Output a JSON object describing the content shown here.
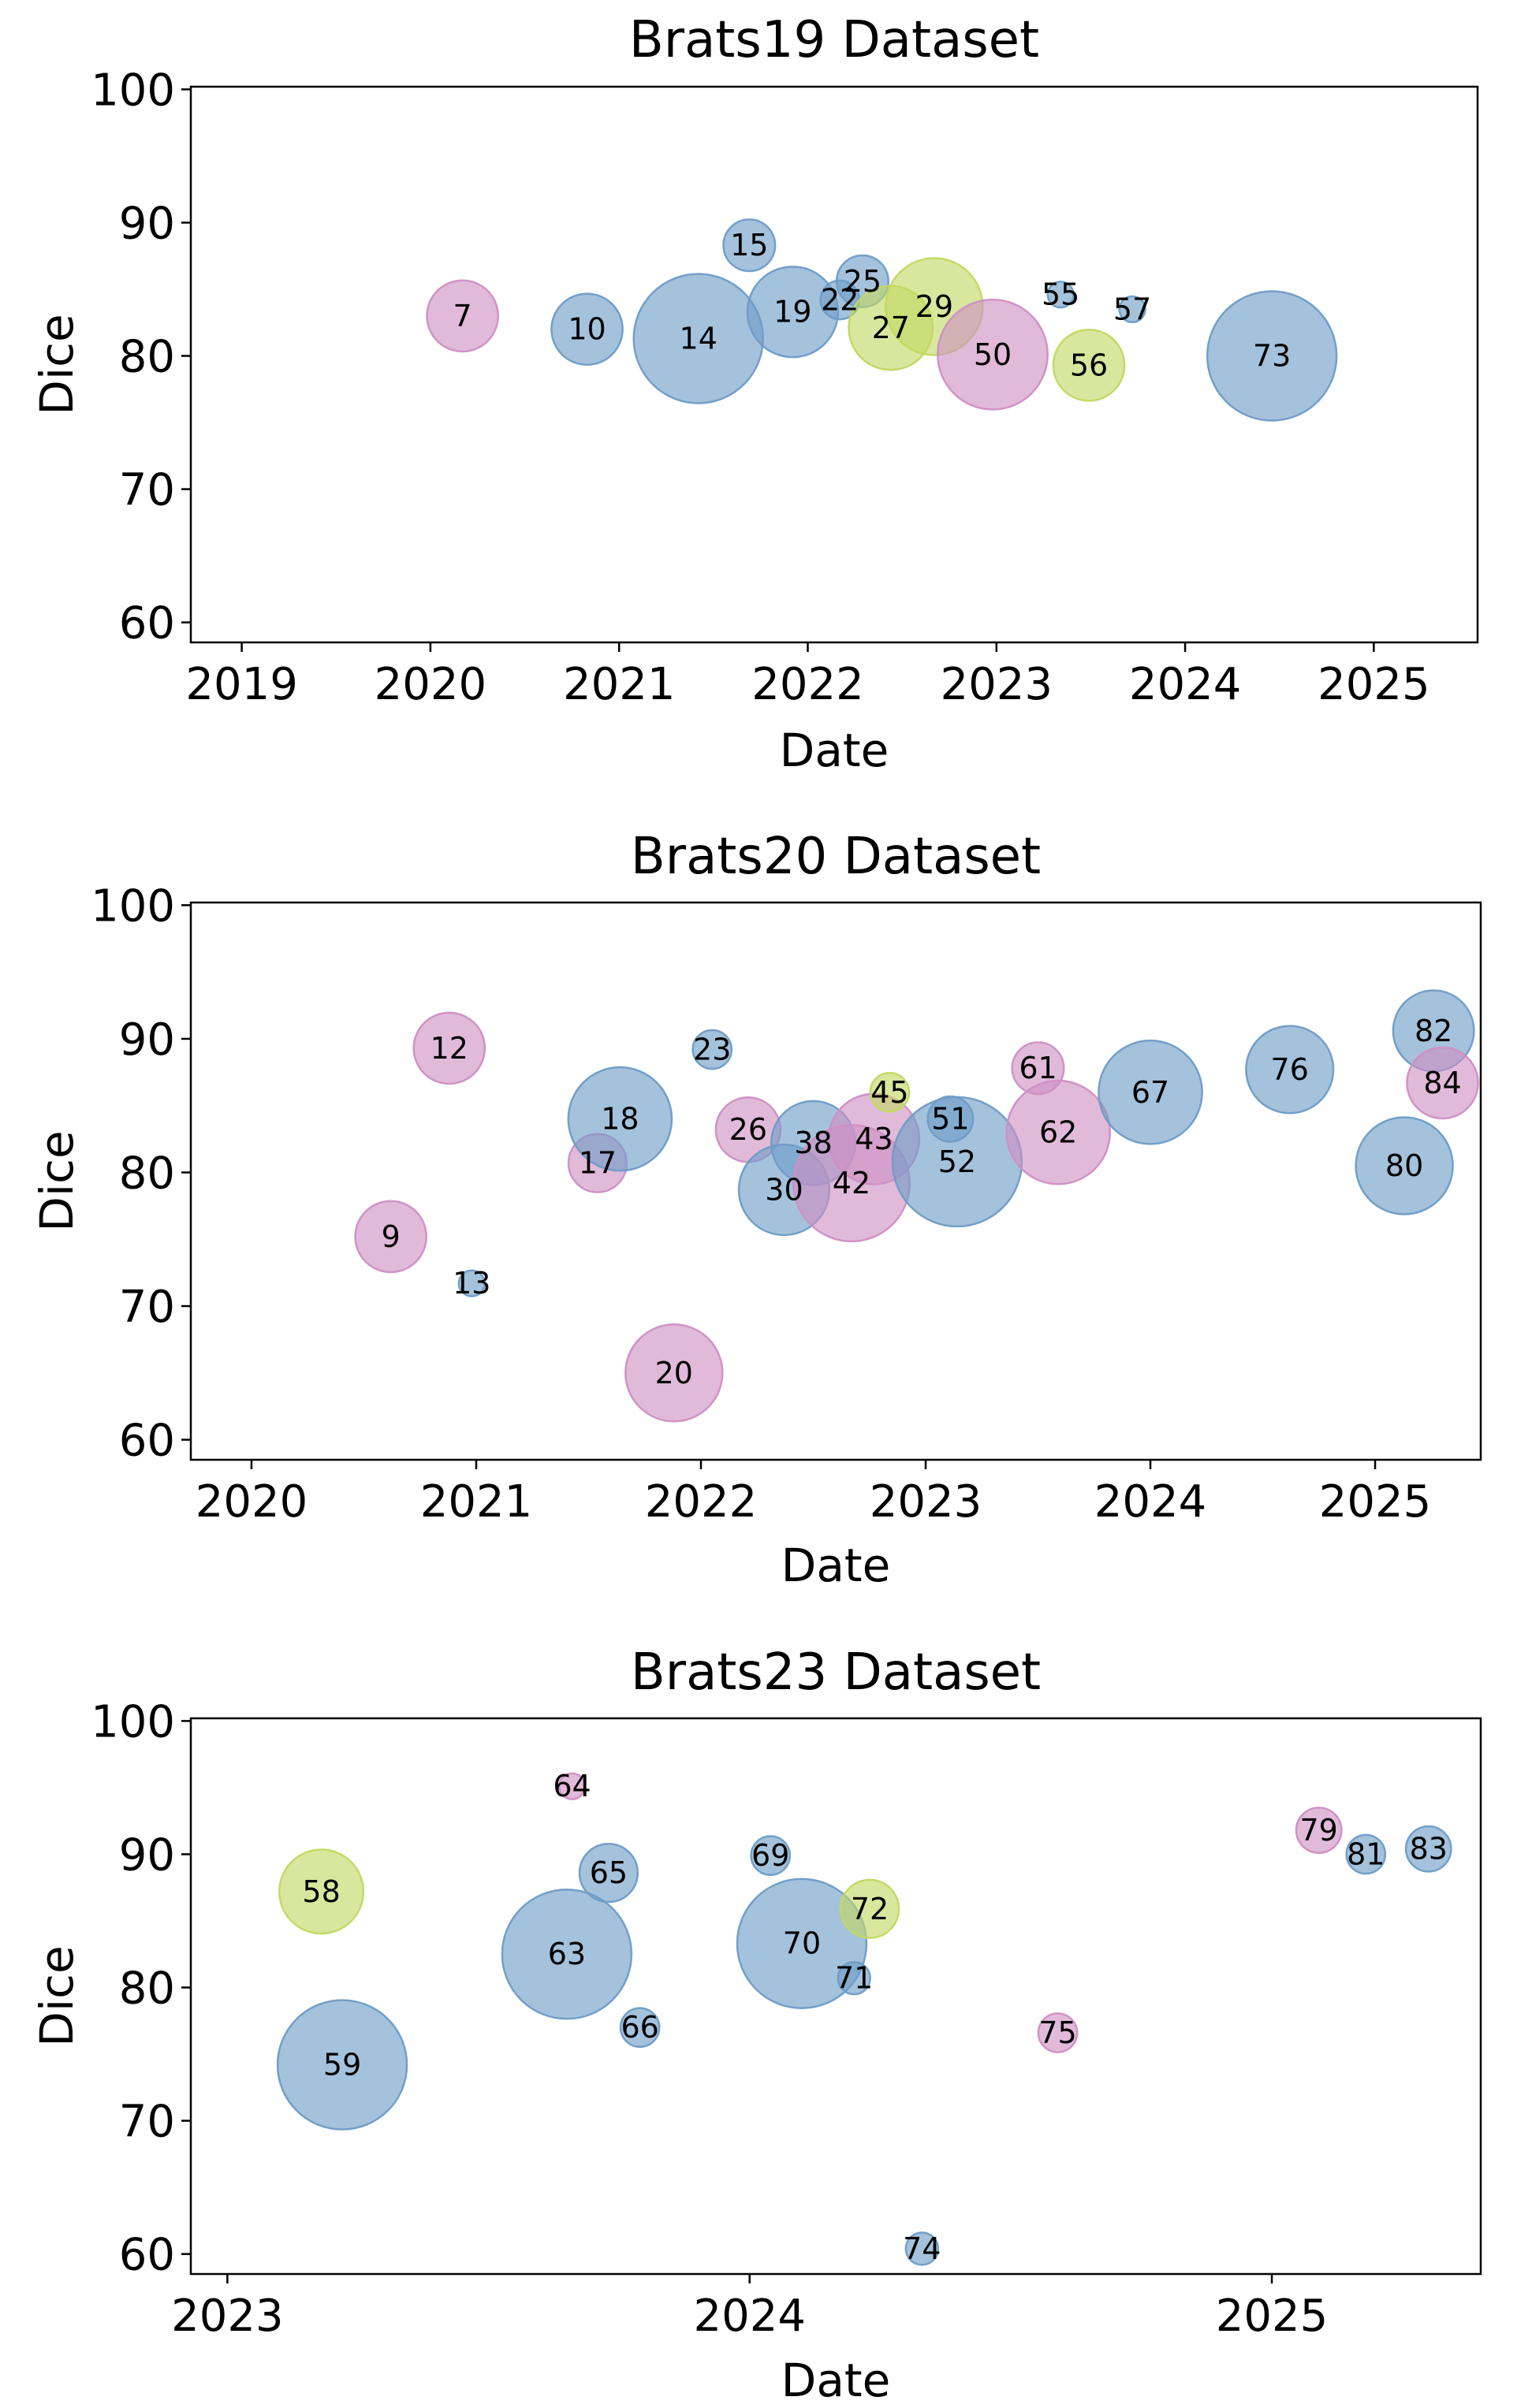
{
  "colors": {
    "blue": "#6e9cc6",
    "pink": "#cf8fc4",
    "green": "#c2d862"
  },
  "chart_data": [
    {
      "type": "scatter",
      "title": "Brats19 Dataset",
      "xlabel": "Date",
      "ylabel": "Dice",
      "xlim": [
        2018.73,
        2025.55
      ],
      "ylim": [
        58.5,
        100.2
      ],
      "xticks": [
        2019,
        2020,
        2021,
        2022,
        2023,
        2024,
        2025
      ],
      "yticks": [
        60,
        70,
        80,
        90,
        100
      ],
      "grid": false,
      "points": [
        {
          "label": "7",
          "x": 2020.17,
          "y": 83.0,
          "size": 22,
          "color": "pink"
        },
        {
          "label": "10",
          "x": 2020.83,
          "y": 82.0,
          "size": 22,
          "color": "blue"
        },
        {
          "label": "14",
          "x": 2021.42,
          "y": 81.3,
          "size": 40,
          "color": "blue"
        },
        {
          "label": "15",
          "x": 2021.69,
          "y": 88.3,
          "size": 16,
          "color": "blue"
        },
        {
          "label": "19",
          "x": 2021.92,
          "y": 83.3,
          "size": 28,
          "color": "blue"
        },
        {
          "label": "22",
          "x": 2022.17,
          "y": 84.2,
          "size": 12,
          "color": "blue"
        },
        {
          "label": "25",
          "x": 2022.29,
          "y": 85.6,
          "size": 16,
          "color": "blue"
        },
        {
          "label": "27",
          "x": 2022.44,
          "y": 82.1,
          "size": 26,
          "color": "green"
        },
        {
          "label": "29",
          "x": 2022.67,
          "y": 83.7,
          "size": 30,
          "color": "green"
        },
        {
          "label": "50",
          "x": 2022.98,
          "y": 80.1,
          "size": 34,
          "color": "pink"
        },
        {
          "label": "55",
          "x": 2023.34,
          "y": 84.6,
          "size": 8,
          "color": "blue"
        },
        {
          "label": "56",
          "x": 2023.49,
          "y": 79.3,
          "size": 22,
          "color": "green"
        },
        {
          "label": "57",
          "x": 2023.72,
          "y": 83.5,
          "size": 8,
          "color": "blue"
        },
        {
          "label": "73",
          "x": 2024.46,
          "y": 80.0,
          "size": 40,
          "color": "blue"
        }
      ]
    },
    {
      "type": "scatter",
      "title": "Brats20 Dataset",
      "xlabel": "Date",
      "ylabel": "Dice",
      "xlim": [
        2019.73,
        2025.47
      ],
      "ylim": [
        58.5,
        100.2
      ],
      "xticks": [
        2020,
        2021,
        2022,
        2023,
        2024,
        2025
      ],
      "yticks": [
        60,
        70,
        80,
        90,
        100
      ],
      "grid": false,
      "points": [
        {
          "label": "9",
          "x": 2020.62,
          "y": 75.2,
          "size": 22,
          "color": "pink"
        },
        {
          "label": "12",
          "x": 2020.88,
          "y": 89.3,
          "size": 22,
          "color": "pink"
        },
        {
          "label": "13",
          "x": 2020.98,
          "y": 71.7,
          "size": 8,
          "color": "blue"
        },
        {
          "label": "17",
          "x": 2021.54,
          "y": 80.7,
          "size": 18,
          "color": "pink"
        },
        {
          "label": "18",
          "x": 2021.64,
          "y": 84.0,
          "size": 32,
          "color": "blue"
        },
        {
          "label": "20",
          "x": 2021.88,
          "y": 65.0,
          "size": 30,
          "color": "pink"
        },
        {
          "label": "23",
          "x": 2022.05,
          "y": 89.2,
          "size": 12,
          "color": "blue"
        },
        {
          "label": "26",
          "x": 2022.21,
          "y": 83.2,
          "size": 20,
          "color": "pink"
        },
        {
          "label": "30",
          "x": 2022.37,
          "y": 78.7,
          "size": 28,
          "color": "blue"
        },
        {
          "label": "38",
          "x": 2022.5,
          "y": 82.2,
          "size": 26,
          "color": "blue"
        },
        {
          "label": "42",
          "x": 2022.67,
          "y": 79.2,
          "size": 36,
          "color": "pink"
        },
        {
          "label": "43",
          "x": 2022.77,
          "y": 82.5,
          "size": 28,
          "color": "pink"
        },
        {
          "label": "45",
          "x": 2022.84,
          "y": 86.0,
          "size": 12,
          "color": "green"
        },
        {
          "label": "51",
          "x": 2023.11,
          "y": 84.0,
          "size": 14,
          "color": "blue"
        },
        {
          "label": "52",
          "x": 2023.14,
          "y": 80.8,
          "size": 40,
          "color": "blue"
        },
        {
          "label": "61",
          "x": 2023.5,
          "y": 87.8,
          "size": 16,
          "color": "pink"
        },
        {
          "label": "62",
          "x": 2023.59,
          "y": 83.0,
          "size": 32,
          "color": "pink"
        },
        {
          "label": "67",
          "x": 2024.0,
          "y": 86.0,
          "size": 32,
          "color": "blue"
        },
        {
          "label": "76",
          "x": 2024.62,
          "y": 87.7,
          "size": 27,
          "color": "blue"
        },
        {
          "label": "80",
          "x": 2025.13,
          "y": 80.5,
          "size": 30,
          "color": "blue"
        },
        {
          "label": "82",
          "x": 2025.26,
          "y": 90.6,
          "size": 25,
          "color": "blue"
        },
        {
          "label": "84",
          "x": 2025.3,
          "y": 86.7,
          "size": 22,
          "color": "pink"
        }
      ]
    },
    {
      "type": "scatter",
      "title": "Brats23 Dataset",
      "xlabel": "Date",
      "ylabel": "Dice",
      "xlim": [
        2022.93,
        2025.4
      ],
      "ylim": [
        58.5,
        100.2
      ],
      "xticks": [
        2023,
        2024,
        2025
      ],
      "yticks": [
        60,
        70,
        80,
        90,
        100
      ],
      "grid": false,
      "points": [
        {
          "label": "58",
          "x": 2023.18,
          "y": 87.2,
          "size": 26,
          "color": "green"
        },
        {
          "label": "59",
          "x": 2023.22,
          "y": 74.2,
          "size": 40,
          "color": "blue"
        },
        {
          "label": "63",
          "x": 2023.65,
          "y": 82.5,
          "size": 40,
          "color": "blue"
        },
        {
          "label": "64",
          "x": 2023.66,
          "y": 95.1,
          "size": 8,
          "color": "pink"
        },
        {
          "label": "65",
          "x": 2023.73,
          "y": 88.6,
          "size": 18,
          "color": "blue"
        },
        {
          "label": "66",
          "x": 2023.79,
          "y": 77.0,
          "size": 12,
          "color": "blue"
        },
        {
          "label": "69",
          "x": 2024.04,
          "y": 89.9,
          "size": 12,
          "color": "blue"
        },
        {
          "label": "70",
          "x": 2024.1,
          "y": 83.3,
          "size": 40,
          "color": "blue"
        },
        {
          "label": "71",
          "x": 2024.2,
          "y": 80.7,
          "size": 10,
          "color": "blue"
        },
        {
          "label": "72",
          "x": 2024.23,
          "y": 85.9,
          "size": 18,
          "color": "green"
        },
        {
          "label": "74",
          "x": 2024.33,
          "y": 60.4,
          "size": 10,
          "color": "blue"
        },
        {
          "label": "75",
          "x": 2024.59,
          "y": 76.6,
          "size": 12,
          "color": "pink"
        },
        {
          "label": "79",
          "x": 2025.09,
          "y": 91.8,
          "size": 14,
          "color": "pink"
        },
        {
          "label": "81",
          "x": 2025.18,
          "y": 90.0,
          "size": 12,
          "color": "blue"
        },
        {
          "label": "83",
          "x": 2025.3,
          "y": 90.4,
          "size": 14,
          "color": "blue"
        }
      ]
    }
  ]
}
